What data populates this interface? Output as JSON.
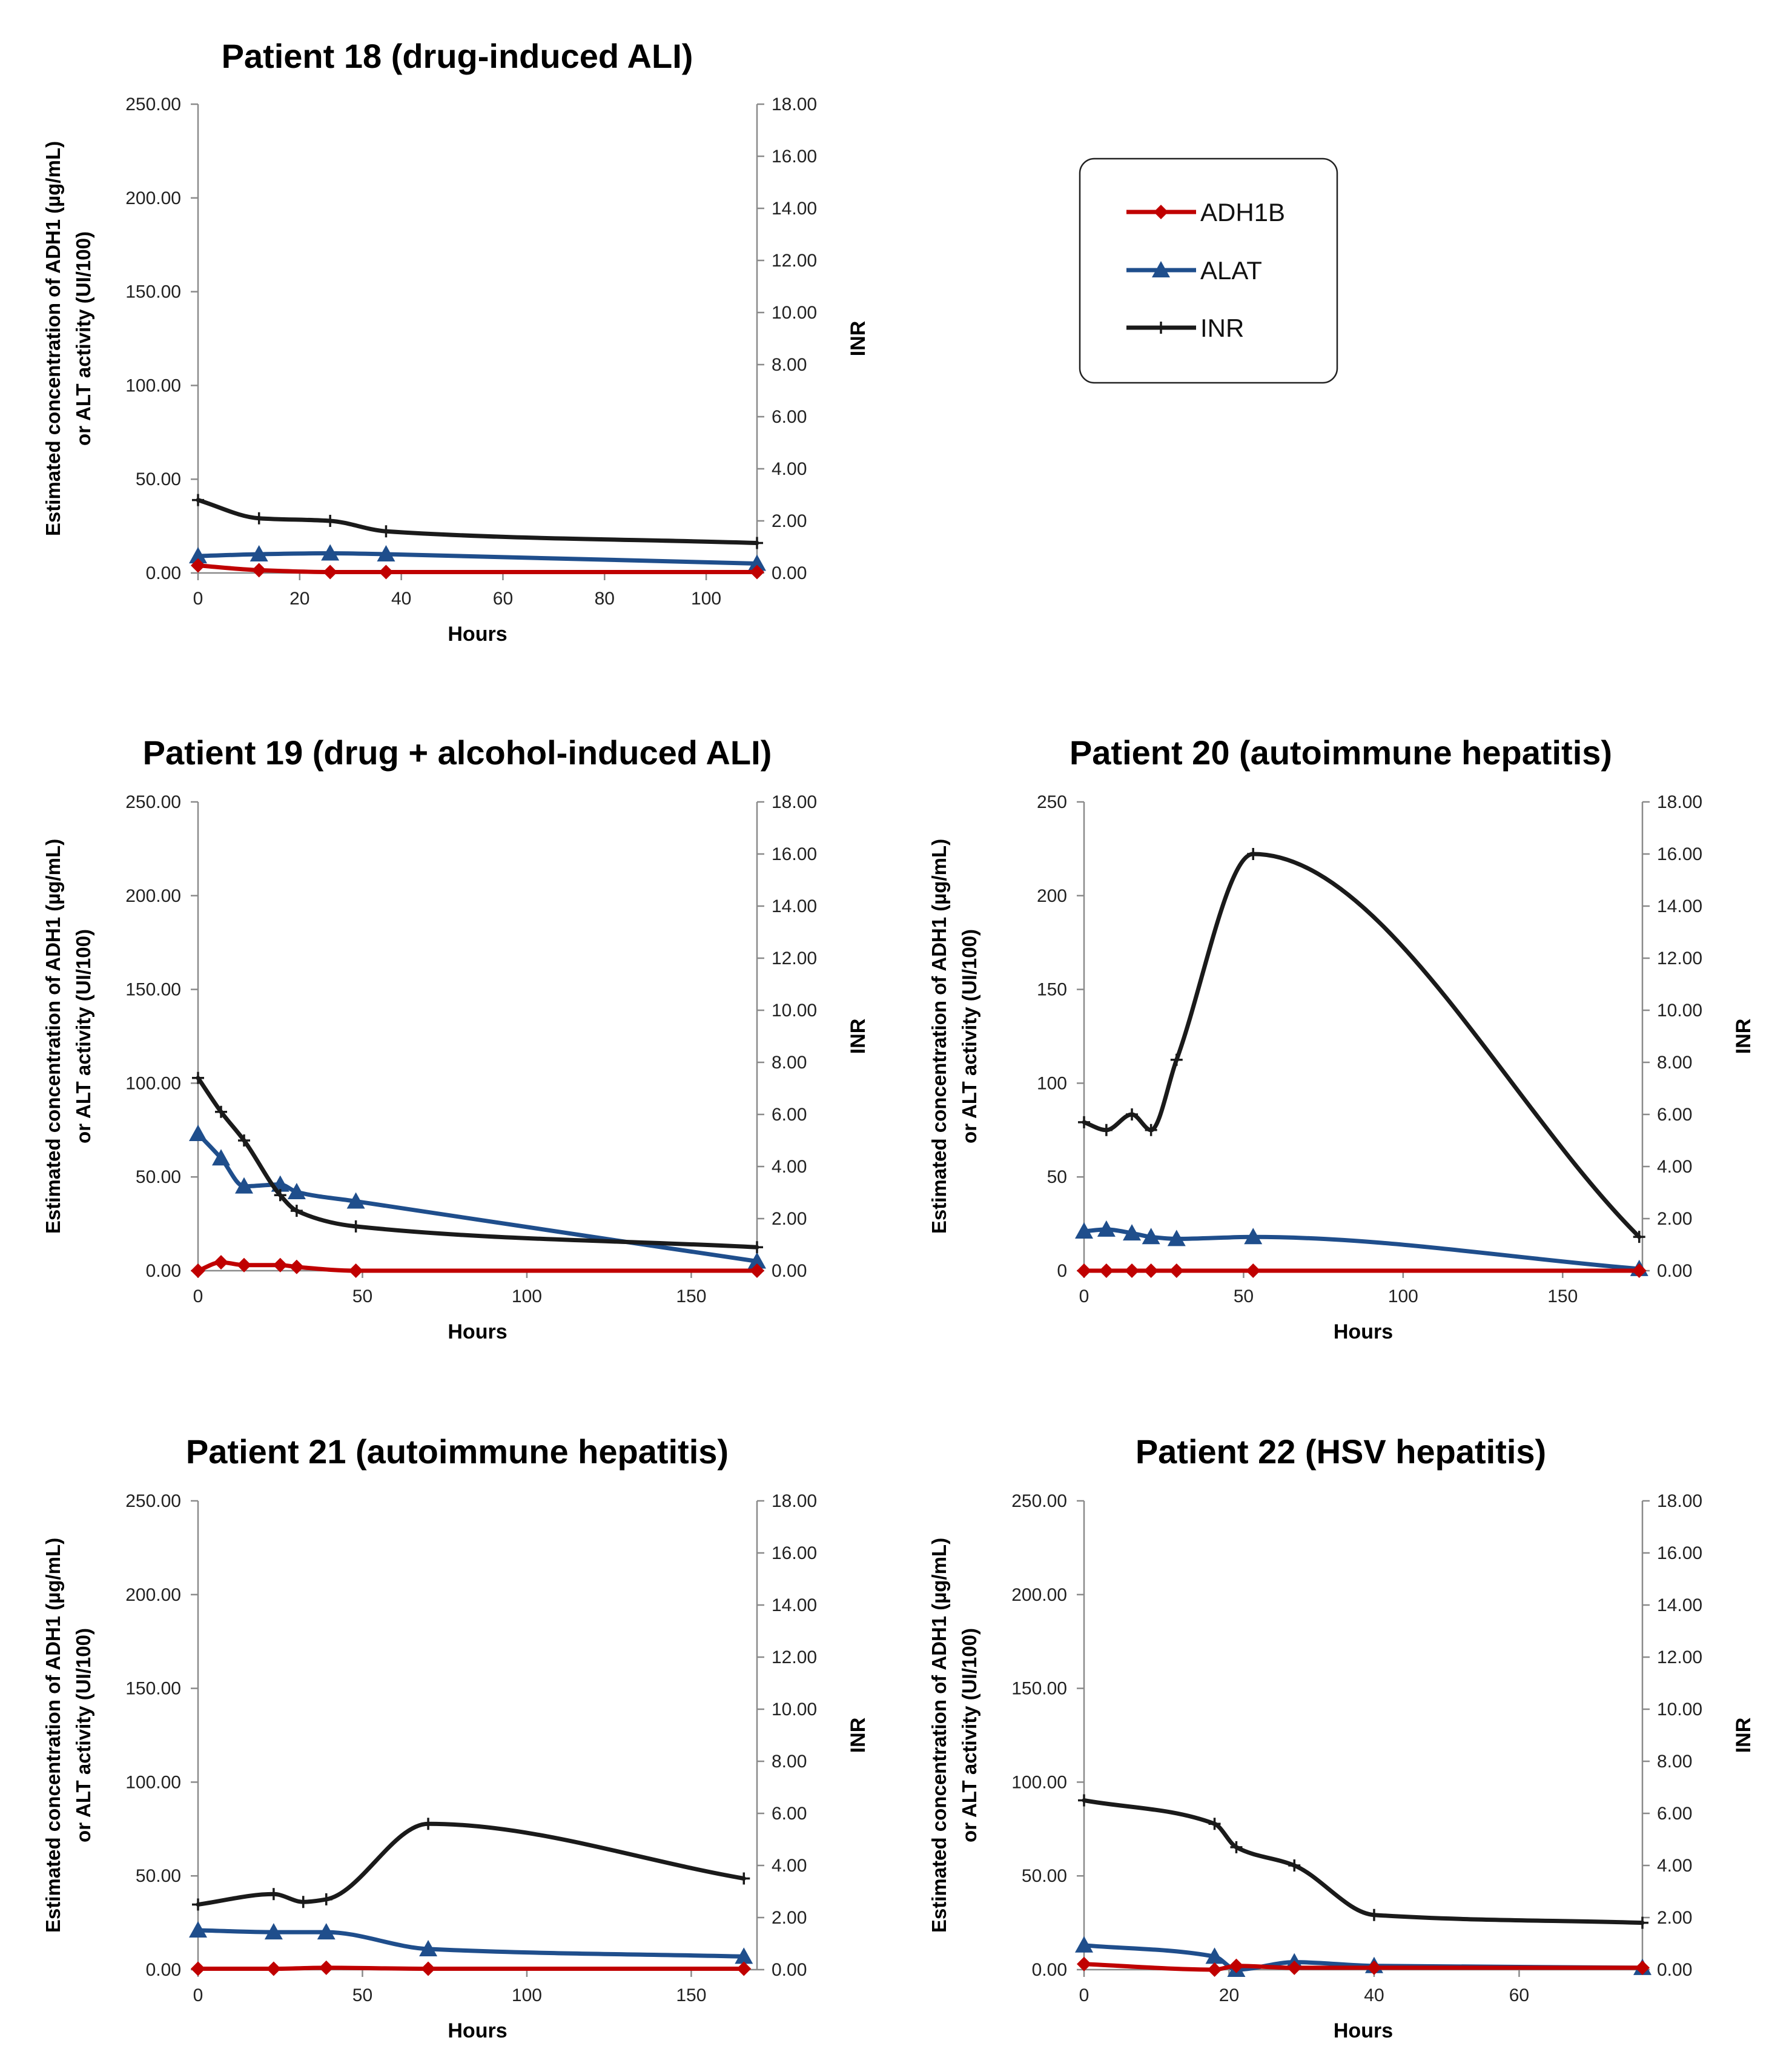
{
  "legend": [
    {
      "name": "ADH1B",
      "color": "#c00000",
      "marker": "diamond-icon"
    },
    {
      "name": "ALAT",
      "color": "#1f4e8c",
      "marker": "triangle-icon"
    },
    {
      "name": "INR",
      "color": "#1a1a1a",
      "marker": "plus-icon"
    }
  ],
  "chart_data": [
    {
      "id": "p18",
      "type": "line",
      "title": "Patient 18 (drug-induced ALI)",
      "xlabel": "Hours",
      "ylabel_line1": "Estimated concentration of ADH1 (µg/mL)",
      "ylabel_line2": "or ALT  activity (UI/100)",
      "y2label": "INR",
      "xlim": [
        0,
        110
      ],
      "xticks": [
        0,
        20,
        40,
        60,
        80,
        100
      ],
      "ylim": [
        0,
        250
      ],
      "yticks": [
        "0.00",
        "50.00",
        "100.00",
        "150.00",
        "200.00",
        "250.00"
      ],
      "y2lim": [
        0,
        18
      ],
      "y2ticks": [
        "0.00",
        "2.00",
        "4.00",
        "6.00",
        "8.00",
        "10.00",
        "12.00",
        "14.00",
        "16.00",
        "18.00"
      ],
      "series": [
        {
          "name": "ADH1B",
          "axis": "left",
          "x": [
            0,
            12,
            26,
            37,
            110
          ],
          "y": [
            4,
            1.5,
            0.5,
            0.5,
            0.5
          ]
        },
        {
          "name": "ALAT",
          "axis": "left",
          "x": [
            0,
            12,
            26,
            37,
            110
          ],
          "y": [
            9,
            10,
            10.5,
            10,
            5
          ]
        },
        {
          "name": "INR",
          "axis": "right",
          "x": [
            0,
            12,
            26,
            37,
            110
          ],
          "y": [
            2.8,
            2.1,
            2.0,
            1.6,
            1.15
          ]
        }
      ]
    },
    {
      "id": "p19",
      "type": "line",
      "title": "Patient 19 (drug + alcohol-induced ALI)",
      "xlabel": "Hours",
      "ylabel_line1": "Estimated concentration of ADH1 (µg/mL)",
      "ylabel_line2": "or ALT  activity (UI/100)",
      "y2label": "INR",
      "xlim": [
        0,
        170
      ],
      "xticks": [
        0,
        50,
        100,
        150
      ],
      "ylim": [
        0,
        250
      ],
      "yticks": [
        "0.00",
        "50.00",
        "100.00",
        "150.00",
        "200.00",
        "250.00"
      ],
      "y2lim": [
        0,
        18
      ],
      "y2ticks": [
        "0.00",
        "2.00",
        "4.00",
        "6.00",
        "8.00",
        "10.00",
        "12.00",
        "14.00",
        "16.00",
        "18.00"
      ],
      "series": [
        {
          "name": "ADH1B",
          "axis": "left",
          "x": [
            0,
            7,
            14,
            25,
            30,
            48,
            170
          ],
          "y": [
            0,
            4.5,
            3,
            3,
            2,
            0,
            0
          ]
        },
        {
          "name": "ALAT",
          "axis": "left",
          "x": [
            0,
            7,
            14,
            25,
            30,
            48,
            170
          ],
          "y": [
            73,
            60,
            45,
            46,
            42,
            37,
            5
          ]
        },
        {
          "name": "INR",
          "axis": "right",
          "x": [
            0,
            7,
            14,
            25,
            30,
            48,
            170
          ],
          "y": [
            7.4,
            6.1,
            5.0,
            2.9,
            2.3,
            1.7,
            0.9
          ]
        }
      ]
    },
    {
      "id": "p20",
      "type": "line",
      "title": "Patient 20 (autoimmune hepatitis)",
      "xlabel": "Hours",
      "ylabel_line1": "Estimated concentration of ADH1 (µg/mL)",
      "ylabel_line2": "or ALT  activity (UI/100)",
      "y2label": "INR",
      "xlim": [
        0,
        175
      ],
      "xticks": [
        0,
        50,
        100,
        150
      ],
      "ylim": [
        0,
        250
      ],
      "yticks": [
        "0",
        "50",
        "100",
        "150",
        "200",
        "250"
      ],
      "y2lim": [
        0,
        18
      ],
      "y2ticks": [
        "0.00",
        "2.00",
        "4.00",
        "6.00",
        "8.00",
        "10.00",
        "12.00",
        "14.00",
        "16.00",
        "18.00"
      ],
      "series": [
        {
          "name": "ADH1B",
          "axis": "left",
          "x": [
            0,
            7,
            15,
            21,
            29,
            53,
            174
          ],
          "y": [
            0,
            0,
            0,
            0,
            0,
            0,
            0
          ]
        },
        {
          "name": "ALAT",
          "axis": "left",
          "x": [
            0,
            7,
            15,
            21,
            29,
            53,
            174
          ],
          "y": [
            21,
            22,
            20,
            18,
            17,
            18,
            1
          ]
        },
        {
          "name": "INR",
          "axis": "right",
          "x": [
            0,
            7,
            15,
            21,
            29,
            53,
            174
          ],
          "y": [
            5.7,
            5.4,
            6.0,
            5.4,
            8.1,
            16.0,
            1.3
          ]
        }
      ]
    },
    {
      "id": "p21",
      "type": "line",
      "title": "Patient 21 (autoimmune hepatitis)",
      "xlabel": "Hours",
      "ylabel_line1": "Estimated concentration of ADH1 (µg/mL)",
      "ylabel_line2": "or ALT  activity (UI/100)",
      "y2label": "INR",
      "xlim": [
        0,
        170
      ],
      "xticks": [
        0,
        50,
        100,
        150
      ],
      "ylim": [
        0,
        250
      ],
      "yticks": [
        "0.00",
        "50.00",
        "100.00",
        "150.00",
        "200.00",
        "250.00"
      ],
      "y2lim": [
        0,
        18
      ],
      "y2ticks": [
        "0.00",
        "2.00",
        "4.00",
        "6.00",
        "8.00",
        "10.00",
        "12.00",
        "14.00",
        "16.00",
        "18.00"
      ],
      "series": [
        {
          "name": "ADH1B",
          "axis": "left",
          "x": [
            0,
            23,
            39,
            70,
            166
          ],
          "y": [
            0.5,
            0.5,
            1,
            0.5,
            0.5
          ]
        },
        {
          "name": "ALAT",
          "axis": "left",
          "x": [
            0,
            23,
            39,
            70,
            166
          ],
          "y": [
            21,
            20,
            20,
            11,
            7
          ]
        },
        {
          "name": "INR",
          "axis": "right",
          "x": [
            0,
            23,
            32,
            39,
            70,
            166
          ],
          "y": [
            2.5,
            2.9,
            2.6,
            2.7,
            5.6,
            3.5
          ]
        }
      ]
    },
    {
      "id": "p22",
      "type": "line",
      "title": "Patient 22 (HSV hepatitis)",
      "xlabel": "Hours",
      "ylabel_line1": "Estimated concentration of ADH1 (µg/mL)",
      "ylabel_line2": "or ALT  activity (UI/100)",
      "y2label": "INR",
      "xlim": [
        0,
        77
      ],
      "xticks": [
        0,
        20,
        40,
        60
      ],
      "ylim": [
        0,
        250
      ],
      "yticks": [
        "0.00",
        "50.00",
        "100.00",
        "150.00",
        "200.00",
        "250.00"
      ],
      "y2lim": [
        0,
        18
      ],
      "y2ticks": [
        "0.00",
        "2.00",
        "4.00",
        "6.00",
        "8.00",
        "10.00",
        "12.00",
        "14.00",
        "16.00",
        "18.00"
      ],
      "series": [
        {
          "name": "ADH1B",
          "axis": "left",
          "x": [
            0,
            18,
            21,
            29,
            40,
            77
          ],
          "y": [
            3,
            0,
            2,
            1,
            1,
            1
          ]
        },
        {
          "name": "ALAT",
          "axis": "left",
          "x": [
            0,
            18,
            21,
            29,
            40,
            77
          ],
          "y": [
            13,
            7,
            0,
            4,
            2,
            1
          ]
        },
        {
          "name": "INR",
          "axis": "right",
          "x": [
            0,
            18,
            21,
            29,
            40,
            77
          ],
          "y": [
            6.5,
            5.6,
            4.7,
            4.0,
            2.1,
            1.8
          ]
        }
      ]
    }
  ]
}
